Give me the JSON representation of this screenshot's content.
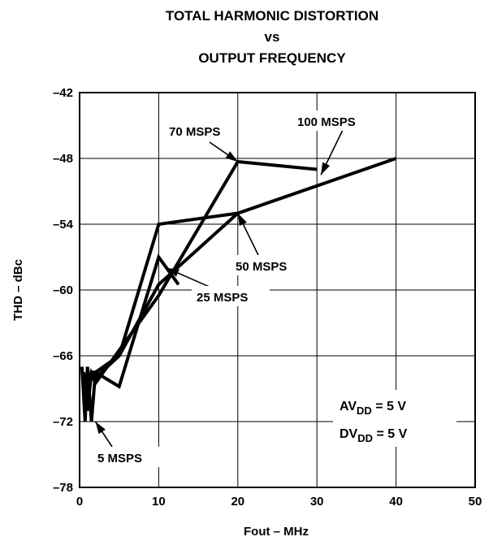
{
  "chart_data": {
    "type": "line",
    "title_lines": [
      "TOTAL HARMONIC DISTORTION",
      "vs",
      "OUTPUT FREQUENCY"
    ],
    "xlabel": "Fout – MHz",
    "ylabel": "THD – dBc",
    "xlim": [
      0,
      50
    ],
    "ylim": [
      -78,
      -42
    ],
    "x_ticks": [
      0,
      10,
      20,
      30,
      40,
      50
    ],
    "y_ticks": [
      -78,
      -72,
      -66,
      -60,
      -54,
      -48,
      -42
    ],
    "x_tick_labels": [
      "0",
      "10",
      "20",
      "30",
      "40",
      "50"
    ],
    "y_tick_labels": [
      "–78",
      "–72",
      "–66",
      "–60",
      "–54",
      "–48",
      "–42"
    ],
    "grid": true,
    "series": [
      {
        "name": "100 MSPS",
        "x": [
          0.5,
          1,
          1.5,
          2,
          5,
          10,
          20,
          22,
          40
        ],
        "y": [
          -67.5,
          -70,
          -67.5,
          -68,
          -66,
          -54,
          -53,
          -52.5,
          -48
        ]
      },
      {
        "name": "70 MSPS",
        "x": [
          0.5,
          1,
          1.5,
          2,
          5,
          10,
          20,
          30
        ],
        "y": [
          -68,
          -71,
          -67.5,
          -68.5,
          -65.5,
          -60.5,
          -48.3,
          -49
        ]
      },
      {
        "name": "50 MSPS",
        "x": [
          0.5,
          1,
          1.5,
          2,
          5,
          10,
          20
        ],
        "y": [
          -67.5,
          -69.5,
          -68,
          -67.5,
          -66,
          -59.5,
          -53
        ]
      },
      {
        "name": "25 MSPS",
        "x": [
          0.5,
          1,
          1.5,
          2,
          5,
          10,
          12.5
        ],
        "y": [
          -68,
          -69,
          -67.5,
          -67.5,
          -68.8,
          -57,
          -59.5
        ]
      },
      {
        "name": "5 MSPS",
        "x": [
          0.3,
          0.7,
          1,
          1.5,
          2
        ],
        "y": [
          -67,
          -72,
          -67,
          -72,
          -67.5
        ]
      }
    ],
    "annotations": [
      {
        "text": "70 MSPS",
        "target_x": 20,
        "target_y": -48.3
      },
      {
        "text": "100 MSPS",
        "target_x": 30.5,
        "target_y": -49.5
      },
      {
        "text": "50 MSPS",
        "target_x": 20,
        "target_y": -53
      },
      {
        "text": "25 MSPS",
        "target_x": 11,
        "target_y": -58
      },
      {
        "text": "5 MSPS",
        "target_x": 2,
        "target_y": -72
      }
    ],
    "conditions": [
      {
        "main": "AV",
        "sub": "DD",
        "rest": " = 5 V"
      },
      {
        "main": "DV",
        "sub": "DD",
        "rest": " = 5 V"
      }
    ]
  }
}
